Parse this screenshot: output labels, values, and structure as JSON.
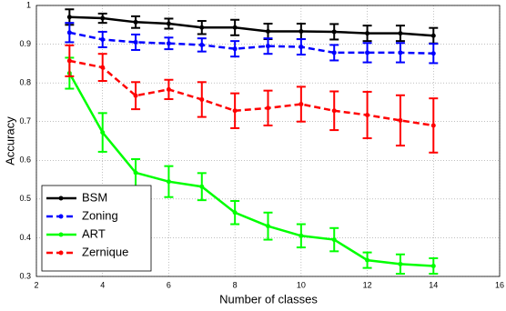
{
  "chart_data": {
    "type": "line",
    "xlabel": "Number of classes",
    "ylabel": "Accuracy",
    "x": [
      3,
      4,
      5,
      6,
      7,
      8,
      9,
      10,
      11,
      12,
      13,
      14
    ],
    "series": [
      {
        "name": "BSM",
        "color": "#000000",
        "dash": "solid",
        "values": [
          0.97,
          0.967,
          0.957,
          0.953,
          0.943,
          0.943,
          0.933,
          0.933,
          0.932,
          0.928,
          0.928,
          0.922
        ],
        "errors": [
          0.02,
          0.012,
          0.015,
          0.013,
          0.017,
          0.02,
          0.02,
          0.02,
          0.02,
          0.02,
          0.02,
          0.02
        ]
      },
      {
        "name": "Zoning",
        "color": "#0000ff",
        "dash": "dashed",
        "values": [
          0.93,
          0.912,
          0.905,
          0.902,
          0.898,
          0.888,
          0.895,
          0.893,
          0.878,
          0.878,
          0.878,
          0.876
        ],
        "errors": [
          0.025,
          0.02,
          0.02,
          0.015,
          0.017,
          0.02,
          0.02,
          0.02,
          0.02,
          0.025,
          0.025,
          0.025
        ]
      },
      {
        "name": "ART",
        "color": "#00ff00",
        "dash": "solid",
        "values": [
          0.825,
          0.672,
          0.568,
          0.545,
          0.532,
          0.465,
          0.43,
          0.405,
          0.395,
          0.342,
          0.332,
          0.327
        ],
        "errors": [
          0.04,
          0.05,
          0.035,
          0.04,
          0.035,
          0.03,
          0.035,
          0.03,
          0.03,
          0.02,
          0.025,
          0.02
        ]
      },
      {
        "name": "Zernique",
        "color": "#ff0000",
        "dash": "dashed",
        "values": [
          0.857,
          0.84,
          0.767,
          0.783,
          0.757,
          0.728,
          0.735,
          0.745,
          0.728,
          0.717,
          0.703,
          0.69
        ],
        "errors": [
          0.04,
          0.035,
          0.035,
          0.025,
          0.045,
          0.045,
          0.045,
          0.045,
          0.05,
          0.06,
          0.065,
          0.07
        ]
      }
    ],
    "xlim": [
      2,
      16
    ],
    "xticks": [
      2,
      4,
      6,
      8,
      10,
      12,
      14,
      16
    ],
    "ylim": [
      0.3,
      1
    ],
    "yticks": [
      0.3,
      0.4,
      0.5,
      0.6,
      0.7,
      0.8,
      0.9,
      1
    ],
    "grid": true,
    "legend": "lower left"
  }
}
